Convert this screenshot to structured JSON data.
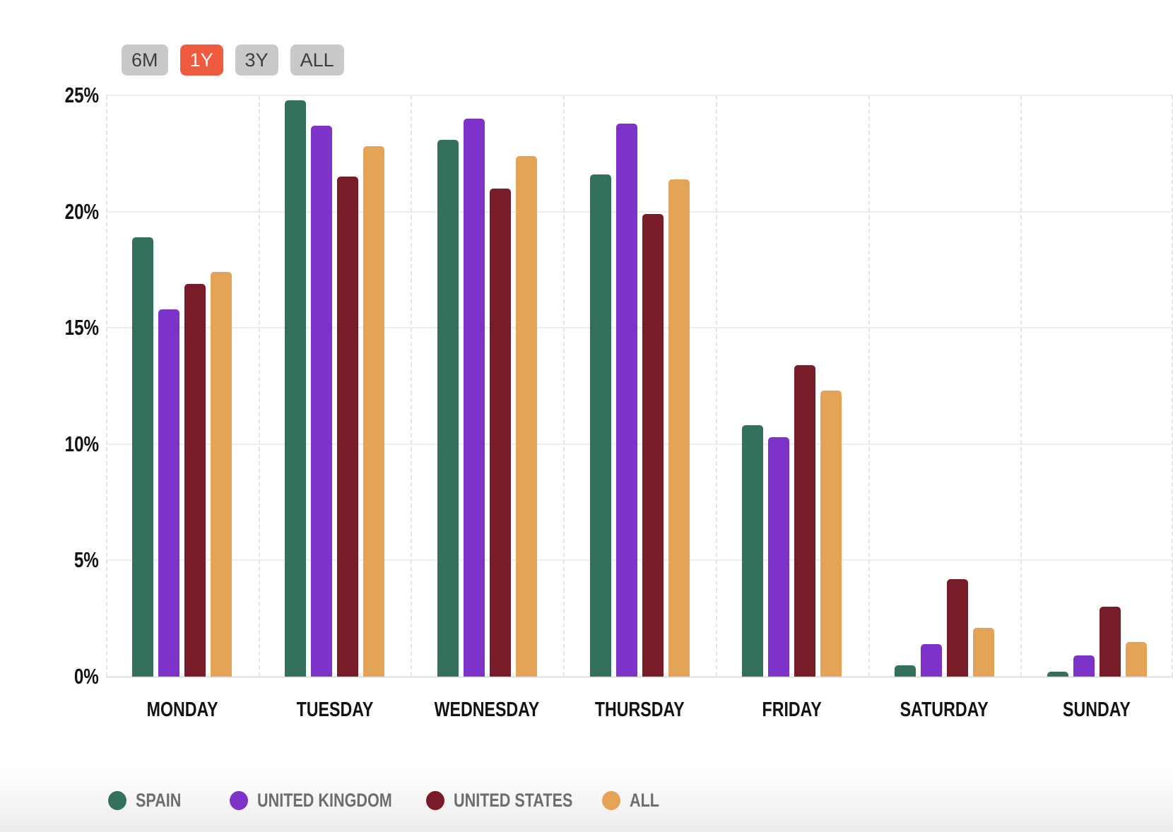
{
  "range_selector": {
    "options": [
      {
        "label": "6M",
        "active": false
      },
      {
        "label": "1Y",
        "active": true
      },
      {
        "label": "3Y",
        "active": false
      },
      {
        "label": "ALL",
        "active": false
      }
    ],
    "active_color": "#ef5b3e",
    "inactive_color": "#c9c9c9"
  },
  "chart_data": {
    "type": "bar",
    "title": "",
    "xlabel": "",
    "ylabel": "",
    "categories": [
      "MONDAY",
      "TUESDAY",
      "WEDNESDAY",
      "THURSDAY",
      "FRIDAY",
      "SATURDAY",
      "SUNDAY"
    ],
    "series": [
      {
        "name": "SPAIN",
        "color": "#33715b",
        "values": [
          18.9,
          24.8,
          23.1,
          21.6,
          10.8,
          0.5,
          0.2
        ]
      },
      {
        "name": "UNITED KINGDOM",
        "color": "#7d32c8",
        "values": [
          15.8,
          23.7,
          24.0,
          23.8,
          10.3,
          1.4,
          0.9
        ]
      },
      {
        "name": "UNITED STATES",
        "color": "#7a1b29",
        "values": [
          16.9,
          21.5,
          21.0,
          19.9,
          13.4,
          4.2,
          3.0
        ]
      },
      {
        "name": "ALL",
        "color": "#e5a455",
        "values": [
          17.4,
          22.8,
          22.4,
          21.4,
          12.3,
          2.1,
          1.5
        ]
      }
    ],
    "ylim": [
      0,
      25
    ],
    "ytick_labels": [
      "0%",
      "5%",
      "10%",
      "15%",
      "20%",
      "25%"
    ],
    "ytick_values": [
      0,
      5,
      10,
      15,
      20,
      25
    ],
    "grid": true,
    "legend_position": "bottom"
  },
  "legend": {
    "text_color": "#6d6d6d",
    "items": [
      {
        "label": "SPAIN",
        "color": "#33715b"
      },
      {
        "label": "UNITED KINGDOM",
        "color": "#7d32c8"
      },
      {
        "label": "UNITED STATES",
        "color": "#7a1b29"
      },
      {
        "label": "ALL",
        "color": "#e5a455"
      }
    ]
  }
}
